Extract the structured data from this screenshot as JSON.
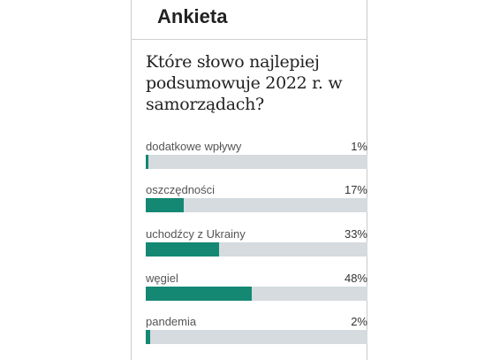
{
  "poll": {
    "title": "Ankieta",
    "question": "Które słowo najlepiej podsumowuje 2022 r. w samorządach?",
    "colors": {
      "fill": "#148873",
      "track": "#d5dbde"
    },
    "options": [
      {
        "label": "dodatkowe wpływy",
        "percent_label": "1%",
        "percent": 1
      },
      {
        "label": "oszczędności",
        "percent_label": "17%",
        "percent": 17
      },
      {
        "label": "uchodźcy z Ukrainy",
        "percent_label": "33%",
        "percent": 33
      },
      {
        "label": "węgiel",
        "percent_label": "48%",
        "percent": 48
      },
      {
        "label": "pandemia",
        "percent_label": "2%",
        "percent": 2
      }
    ]
  }
}
